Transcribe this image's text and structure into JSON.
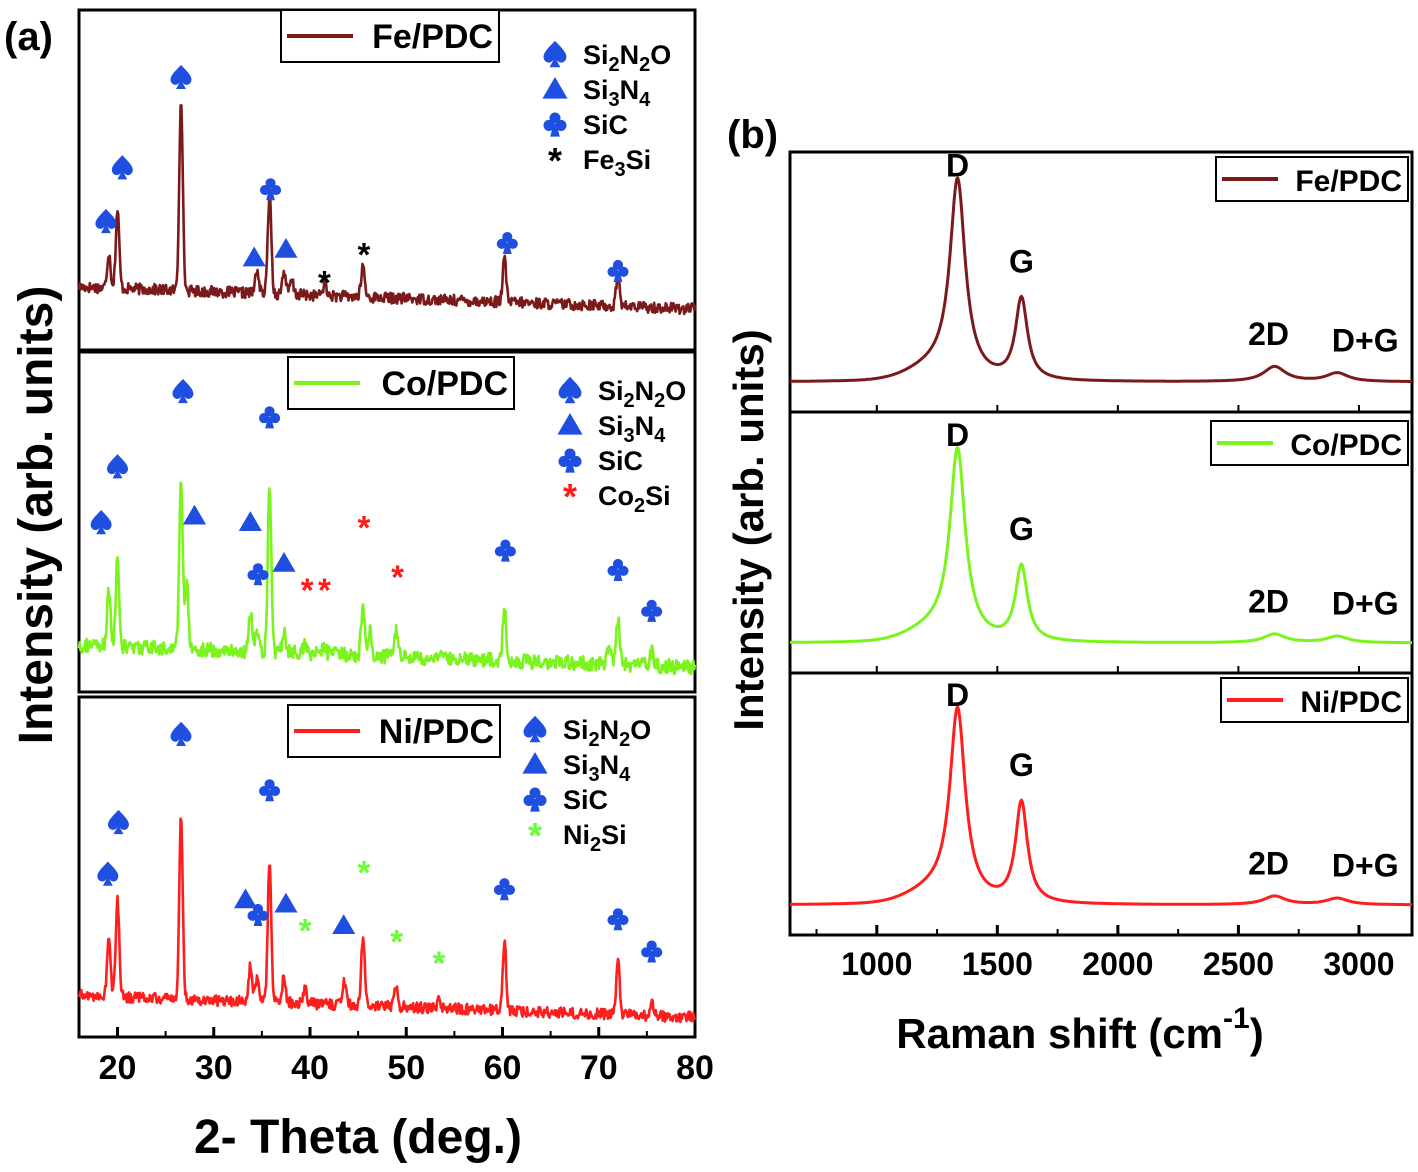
{
  "chart_data": [
    {
      "panel_label": "(a)",
      "type": "line",
      "xlabel": "2- Theta (deg.)",
      "ylabel": "Intensity (arb. units)",
      "xlim": [
        16,
        80
      ],
      "xticks": [
        "20",
        "30",
        "40",
        "50",
        "60",
        "70",
        "80"
      ],
      "grid": false,
      "legend_position": "top-center",
      "phase_legend_position": "top-right",
      "series": [
        {
          "name": "Fe/PDC",
          "color": "#7b1a1a",
          "baseline": 0.5,
          "noise": 0.03,
          "peaks": [
            [
              19.1,
              0.18
            ],
            [
              20.0,
              0.4
            ],
            [
              26.6,
              1.0
            ],
            [
              34.5,
              0.12
            ],
            [
              35.8,
              0.52
            ],
            [
              37.3,
              0.12
            ],
            [
              38.1,
              0.07
            ],
            [
              41.5,
              0.06
            ],
            [
              45.5,
              0.16
            ],
            [
              60.2,
              0.22
            ],
            [
              72.0,
              0.17
            ]
          ],
          "phases": [
            {
              "name": "Si2N2O",
              "symbol": "spade",
              "color": "#1f4fe0"
            },
            {
              "name": "Si3N4",
              "symbol": "triangle",
              "color": "#1f4fe0"
            },
            {
              "name": "SiC",
              "symbol": "club",
              "color": "#1f4fe0"
            },
            {
              "name": "Fe3Si",
              "symbol": "star",
              "color": "#000000"
            }
          ],
          "markers": [
            {
              "x": 18.8,
              "y": 0.6,
              "symbol": "spade",
              "color": "#1f4fe0"
            },
            {
              "x": 20.5,
              "y": 0.85,
              "symbol": "spade",
              "color": "#1f4fe0"
            },
            {
              "x": 26.6,
              "y": 1.27,
              "symbol": "spade",
              "color": "#1f4fe0"
            },
            {
              "x": 34.2,
              "y": 0.43,
              "symbol": "triangle",
              "color": "#1f4fe0"
            },
            {
              "x": 35.9,
              "y": 0.75,
              "symbol": "club",
              "color": "#1f4fe0"
            },
            {
              "x": 37.5,
              "y": 0.47,
              "symbol": "triangle",
              "color": "#1f4fe0"
            },
            {
              "x": 41.5,
              "y": 0.32,
              "symbol": "star",
              "color": "#000000"
            },
            {
              "x": 45.6,
              "y": 0.45,
              "symbol": "star",
              "color": "#000000"
            },
            {
              "x": 60.5,
              "y": 0.5,
              "symbol": "club",
              "color": "#1f4fe0"
            },
            {
              "x": 72.0,
              "y": 0.37,
              "symbol": "club",
              "color": "#1f4fe0"
            }
          ]
        },
        {
          "name": "Co/PDC",
          "color": "#7bf31d",
          "baseline": 0.37,
          "noise": 0.04,
          "peaks": [
            [
              19.1,
              0.28
            ],
            [
              20.0,
              0.45
            ],
            [
              26.6,
              0.88
            ],
            [
              27.2,
              0.32
            ],
            [
              33.8,
              0.2
            ],
            [
              34.5,
              0.12
            ],
            [
              35.8,
              0.85
            ],
            [
              37.3,
              0.12
            ],
            [
              39.5,
              0.06
            ],
            [
              41.5,
              0.05
            ],
            [
              45.5,
              0.26
            ],
            [
              46.2,
              0.14
            ],
            [
              48.9,
              0.14
            ],
            [
              60.2,
              0.28
            ],
            [
              71.1,
              0.1
            ],
            [
              72.0,
              0.24
            ],
            [
              75.5,
              0.07
            ]
          ],
          "phases": [
            {
              "name": "Si2N2O",
              "symbol": "spade",
              "color": "#1f4fe0"
            },
            {
              "name": "Si3N4",
              "symbol": "triangle",
              "color": "#1f4fe0"
            },
            {
              "name": "SiC",
              "symbol": "club",
              "color": "#1f4fe0"
            },
            {
              "name": "Co2Si",
              "symbol": "star",
              "color": "#ff1a1a"
            }
          ],
          "markers": [
            {
              "x": 18.3,
              "y": 0.79,
              "symbol": "spade",
              "color": "#1f4fe0"
            },
            {
              "x": 20.0,
              "y": 1.05,
              "symbol": "spade",
              "color": "#1f4fe0"
            },
            {
              "x": 26.8,
              "y": 1.4,
              "symbol": "spade",
              "color": "#1f4fe0"
            },
            {
              "x": 28.0,
              "y": 0.82,
              "symbol": "triangle",
              "color": "#1f4fe0"
            },
            {
              "x": 33.8,
              "y": 0.79,
              "symbol": "triangle",
              "color": "#1f4fe0"
            },
            {
              "x": 34.6,
              "y": 0.55,
              "symbol": "club",
              "color": "#1f4fe0"
            },
            {
              "x": 35.8,
              "y": 1.28,
              "symbol": "club",
              "color": "#1f4fe0"
            },
            {
              "x": 37.3,
              "y": 0.6,
              "symbol": "triangle",
              "color": "#1f4fe0"
            },
            {
              "x": 39.7,
              "y": 0.48,
              "symbol": "star",
              "color": "#ff1a1a"
            },
            {
              "x": 41.5,
              "y": 0.48,
              "symbol": "star",
              "color": "#ff1a1a"
            },
            {
              "x": 45.6,
              "y": 0.77,
              "symbol": "star",
              "color": "#ff1a1a"
            },
            {
              "x": 49.1,
              "y": 0.54,
              "symbol": "star",
              "color": "#ff1a1a"
            },
            {
              "x": 60.3,
              "y": 0.66,
              "symbol": "club",
              "color": "#1f4fe0"
            },
            {
              "x": 72.0,
              "y": 0.57,
              "symbol": "club",
              "color": "#1f4fe0"
            },
            {
              "x": 75.5,
              "y": 0.38,
              "symbol": "club",
              "color": "#1f4fe0"
            }
          ]
        },
        {
          "name": "Ni/PDC",
          "color": "#ff1e1e",
          "baseline": 0.33,
          "noise": 0.03,
          "peaks": [
            [
              19.1,
              0.3
            ],
            [
              20.0,
              0.5
            ],
            [
              26.6,
              0.93
            ],
            [
              33.8,
              0.18
            ],
            [
              34.5,
              0.12
            ],
            [
              35.8,
              0.73
            ],
            [
              37.3,
              0.13
            ],
            [
              39.5,
              0.07
            ],
            [
              43.6,
              0.12
            ],
            [
              45.5,
              0.35
            ],
            [
              48.9,
              0.12
            ],
            [
              53.4,
              0.05
            ],
            [
              60.2,
              0.36
            ],
            [
              72.0,
              0.27
            ],
            [
              75.5,
              0.07
            ]
          ],
          "phases": [
            {
              "name": "Si2N2O",
              "symbol": "spade",
              "color": "#1f4fe0"
            },
            {
              "name": "Si3N4",
              "symbol": "triangle",
              "color": "#1f4fe0"
            },
            {
              "name": "SiC",
              "symbol": "club",
              "color": "#1f4fe0"
            },
            {
              "name": "Ni2Si",
              "symbol": "star",
              "color": "#66ff33"
            }
          ],
          "markers": [
            {
              "x": 19.0,
              "y": 0.76,
              "symbol": "spade",
              "color": "#1f4fe0"
            },
            {
              "x": 20.1,
              "y": 1.0,
              "symbol": "spade",
              "color": "#1f4fe0"
            },
            {
              "x": 26.6,
              "y": 1.41,
              "symbol": "spade",
              "color": "#1f4fe0"
            },
            {
              "x": 33.3,
              "y": 0.64,
              "symbol": "triangle",
              "color": "#1f4fe0"
            },
            {
              "x": 34.6,
              "y": 0.57,
              "symbol": "club",
              "color": "#1f4fe0"
            },
            {
              "x": 35.8,
              "y": 1.15,
              "symbol": "club",
              "color": "#1f4fe0"
            },
            {
              "x": 37.5,
              "y": 0.62,
              "symbol": "triangle",
              "color": "#1f4fe0"
            },
            {
              "x": 39.5,
              "y": 0.5,
              "symbol": "star",
              "color": "#66ff33"
            },
            {
              "x": 43.5,
              "y": 0.52,
              "symbol": "triangle",
              "color": "#1f4fe0"
            },
            {
              "x": 45.6,
              "y": 0.77,
              "symbol": "star",
              "color": "#66ff33"
            },
            {
              "x": 49.0,
              "y": 0.45,
              "symbol": "star",
              "color": "#66ff33"
            },
            {
              "x": 53.4,
              "y": 0.35,
              "symbol": "star",
              "color": "#66ff33"
            },
            {
              "x": 60.2,
              "y": 0.69,
              "symbol": "club",
              "color": "#1f4fe0"
            },
            {
              "x": 72.0,
              "y": 0.55,
              "symbol": "club",
              "color": "#1f4fe0"
            },
            {
              "x": 75.5,
              "y": 0.4,
              "symbol": "club",
              "color": "#1f4fe0"
            }
          ]
        }
      ]
    },
    {
      "panel_label": "(b)",
      "type": "line",
      "xlabel": "Raman shift (cm",
      "xlabel_superscript": "-1",
      "xlabel_suffix": ")",
      "ylabel": "Intensity (arb. units)",
      "xlim": [
        640,
        3220
      ],
      "xticks": [
        "1000",
        "1500",
        "2000",
        "2500",
        "3000"
      ],
      "grid": false,
      "legend_position": "top-right",
      "series": [
        {
          "name": "Fe/PDC",
          "color": "#7b1a1a",
          "bands": [
            {
              "label": "D",
              "x": 1335,
              "height": 0.9
            },
            {
              "label": "G",
              "x": 1600,
              "height": 0.38
            },
            {
              "label": "2D",
              "x": 2650,
              "height": 0.07
            },
            {
              "label": "D+G",
              "x": 2910,
              "height": 0.04
            }
          ]
        },
        {
          "name": "Co/PDC",
          "color": "#7bf31d",
          "bands": [
            {
              "label": "D",
              "x": 1335,
              "height": 0.86
            },
            {
              "label": "G",
              "x": 1600,
              "height": 0.35
            },
            {
              "label": "2D",
              "x": 2650,
              "height": 0.04
            },
            {
              "label": "D+G",
              "x": 2910,
              "height": 0.03
            }
          ]
        },
        {
          "name": "Ni/PDC",
          "color": "#ff1e1e",
          "bands": [
            {
              "label": "D",
              "x": 1335,
              "height": 0.87
            },
            {
              "label": "G",
              "x": 1600,
              "height": 0.47
            },
            {
              "label": "2D",
              "x": 2650,
              "height": 0.04
            },
            {
              "label": "D+G",
              "x": 2910,
              "height": 0.03
            }
          ]
        }
      ]
    }
  ]
}
